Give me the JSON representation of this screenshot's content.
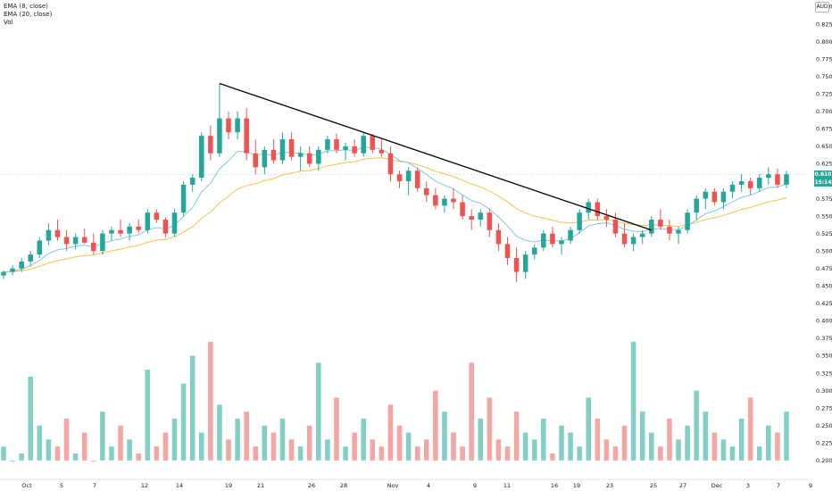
{
  "legend": {
    "ema8": "EMA (8, close)",
    "ema20": "EMA (20, close)",
    "vol": "Vol"
  },
  "currency": "AUD",
  "last_price_label": "0.610",
  "countdown_label": "15:14",
  "colors": {
    "up": "#26a69a",
    "down": "#ef5350",
    "vol_up": "#84cfc5",
    "vol_down": "#f4a6a4",
    "ema8": "#7fc7e0",
    "ema20": "#f7c04a",
    "trendline": "#000000",
    "price_line": "#26a69a"
  },
  "chart_data": {
    "type": "candlestick",
    "y_ticks": [
      "0.850",
      "0.825",
      "0.800",
      "0.775",
      "0.750",
      "0.725",
      "0.700",
      "0.675",
      "0.650",
      "0.625",
      "0.600",
      "0.575",
      "0.550",
      "0.525",
      "0.500",
      "0.475",
      "0.450",
      "0.425",
      "0.400",
      "0.375",
      "0.350",
      "0.325",
      "0.300",
      "0.275",
      "0.250",
      "0.225",
      "0.200"
    ],
    "x_ticks": [
      "Oct",
      "5",
      "7",
      "12",
      "14",
      "19",
      "21",
      "26",
      "28",
      "Nov",
      "4",
      "9",
      "11",
      "16",
      "19",
      "23",
      "25",
      "27",
      "Dec",
      "3",
      "7",
      "9"
    ],
    "ylim": [
      0.2,
      0.875
    ],
    "candles": [
      [
        0.465,
        0.472,
        0.46,
        0.47
      ],
      [
        0.47,
        0.48,
        0.465,
        0.475
      ],
      [
        0.475,
        0.49,
        0.47,
        0.485
      ],
      [
        0.485,
        0.5,
        0.478,
        0.495
      ],
      [
        0.495,
        0.52,
        0.49,
        0.515
      ],
      [
        0.515,
        0.54,
        0.508,
        0.53
      ],
      [
        0.53,
        0.545,
        0.515,
        0.52
      ],
      [
        0.52,
        0.53,
        0.5,
        0.51
      ],
      [
        0.51,
        0.525,
        0.502,
        0.52
      ],
      [
        0.52,
        0.532,
        0.51,
        0.512
      ],
      [
        0.512,
        0.525,
        0.495,
        0.5
      ],
      [
        0.5,
        0.53,
        0.495,
        0.525
      ],
      [
        0.525,
        0.535,
        0.515,
        0.53
      ],
      [
        0.53,
        0.545,
        0.52,
        0.525
      ],
      [
        0.525,
        0.54,
        0.515,
        0.535
      ],
      [
        0.535,
        0.545,
        0.525,
        0.53
      ],
      [
        0.53,
        0.56,
        0.525,
        0.555
      ],
      [
        0.555,
        0.56,
        0.54,
        0.545
      ],
      [
        0.545,
        0.548,
        0.52,
        0.525
      ],
      [
        0.525,
        0.56,
        0.52,
        0.555
      ],
      [
        0.555,
        0.6,
        0.55,
        0.595
      ],
      [
        0.595,
        0.61,
        0.585,
        0.605
      ],
      [
        0.605,
        0.67,
        0.6,
        0.665
      ],
      [
        0.665,
        0.68,
        0.63,
        0.64
      ],
      [
        0.64,
        0.74,
        0.635,
        0.69
      ],
      [
        0.69,
        0.7,
        0.66,
        0.67
      ],
      [
        0.67,
        0.7,
        0.66,
        0.69
      ],
      [
        0.69,
        0.705,
        0.63,
        0.64
      ],
      [
        0.64,
        0.66,
        0.61,
        0.62
      ],
      [
        0.62,
        0.65,
        0.61,
        0.645
      ],
      [
        0.645,
        0.66,
        0.625,
        0.63
      ],
      [
        0.63,
        0.67,
        0.625,
        0.66
      ],
      [
        0.66,
        0.67,
        0.63,
        0.635
      ],
      [
        0.635,
        0.65,
        0.615,
        0.64
      ],
      [
        0.64,
        0.65,
        0.62,
        0.625
      ],
      [
        0.625,
        0.65,
        0.615,
        0.645
      ],
      [
        0.645,
        0.665,
        0.64,
        0.66
      ],
      [
        0.66,
        0.668,
        0.64,
        0.645
      ],
      [
        0.645,
        0.655,
        0.63,
        0.65
      ],
      [
        0.65,
        0.66,
        0.635,
        0.64
      ],
      [
        0.64,
        0.67,
        0.635,
        0.665
      ],
      [
        0.665,
        0.668,
        0.64,
        0.645
      ],
      [
        0.645,
        0.66,
        0.635,
        0.64
      ],
      [
        0.64,
        0.65,
        0.6,
        0.61
      ],
      [
        0.61,
        0.615,
        0.59,
        0.6
      ],
      [
        0.6,
        0.62,
        0.58,
        0.615
      ],
      [
        0.615,
        0.62,
        0.585,
        0.59
      ],
      [
        0.59,
        0.6,
        0.57,
        0.58
      ],
      [
        0.58,
        0.59,
        0.56,
        0.565
      ],
      [
        0.565,
        0.58,
        0.555,
        0.575
      ],
      [
        0.575,
        0.59,
        0.56,
        0.57
      ],
      [
        0.57,
        0.58,
        0.545,
        0.55
      ],
      [
        0.55,
        0.56,
        0.53,
        0.545
      ],
      [
        0.545,
        0.56,
        0.535,
        0.555
      ],
      [
        0.555,
        0.56,
        0.52,
        0.53
      ],
      [
        0.53,
        0.54,
        0.5,
        0.51
      ],
      [
        0.51,
        0.52,
        0.48,
        0.49
      ],
      [
        0.49,
        0.505,
        0.455,
        0.47
      ],
      [
        0.47,
        0.5,
        0.46,
        0.495
      ],
      [
        0.495,
        0.51,
        0.488,
        0.505
      ],
      [
        0.505,
        0.53,
        0.5,
        0.525
      ],
      [
        0.525,
        0.535,
        0.505,
        0.51
      ],
      [
        0.51,
        0.52,
        0.495,
        0.515
      ],
      [
        0.515,
        0.535,
        0.51,
        0.53
      ],
      [
        0.53,
        0.56,
        0.525,
        0.555
      ],
      [
        0.555,
        0.575,
        0.545,
        0.57
      ],
      [
        0.57,
        0.575,
        0.545,
        0.55
      ],
      [
        0.55,
        0.56,
        0.535,
        0.545
      ],
      [
        0.545,
        0.555,
        0.52,
        0.525
      ],
      [
        0.525,
        0.54,
        0.505,
        0.51
      ],
      [
        0.51,
        0.525,
        0.5,
        0.52
      ],
      [
        0.52,
        0.53,
        0.51,
        0.525
      ],
      [
        0.525,
        0.55,
        0.52,
        0.545
      ],
      [
        0.545,
        0.56,
        0.53,
        0.535
      ],
      [
        0.535,
        0.545,
        0.515,
        0.525
      ],
      [
        0.525,
        0.535,
        0.51,
        0.53
      ],
      [
        0.53,
        0.56,
        0.525,
        0.555
      ],
      [
        0.555,
        0.58,
        0.545,
        0.575
      ],
      [
        0.575,
        0.59,
        0.56,
        0.585
      ],
      [
        0.585,
        0.59,
        0.565,
        0.57
      ],
      [
        0.57,
        0.59,
        0.56,
        0.585
      ],
      [
        0.585,
        0.6,
        0.575,
        0.595
      ],
      [
        0.595,
        0.61,
        0.585,
        0.6
      ],
      [
        0.6,
        0.605,
        0.58,
        0.59
      ],
      [
        0.59,
        0.61,
        0.585,
        0.605
      ],
      [
        0.605,
        0.62,
        0.595,
        0.61
      ],
      [
        0.61,
        0.618,
        0.59,
        0.595
      ],
      [
        0.595,
        0.615,
        0.59,
        0.61
      ]
    ],
    "volumes": [
      0.22,
      0.2,
      0.21,
      0.32,
      0.25,
      0.23,
      0.22,
      0.26,
      0.21,
      0.24,
      0.2,
      0.27,
      0.22,
      0.25,
      0.23,
      0.21,
      0.33,
      0.22,
      0.24,
      0.26,
      0.31,
      0.35,
      0.24,
      0.37,
      0.28,
      0.23,
      0.26,
      0.27,
      0.22,
      0.25,
      0.24,
      0.26,
      0.23,
      0.22,
      0.25,
      0.34,
      0.23,
      0.29,
      0.22,
      0.24,
      0.26,
      0.23,
      0.22,
      0.28,
      0.25,
      0.24,
      0.22,
      0.23,
      0.3,
      0.27,
      0.24,
      0.22,
      0.34,
      0.26,
      0.29,
      0.23,
      0.22,
      0.27,
      0.24,
      0.23,
      0.26,
      0.21,
      0.25,
      0.24,
      0.22,
      0.29,
      0.26,
      0.23,
      0.22,
      0.25,
      0.37,
      0.27,
      0.24,
      0.22,
      0.26,
      0.23,
      0.25,
      0.3,
      0.27,
      0.24,
      0.23,
      0.22,
      0.26,
      0.29,
      0.22,
      0.25,
      0.24,
      0.27
    ]
  }
}
